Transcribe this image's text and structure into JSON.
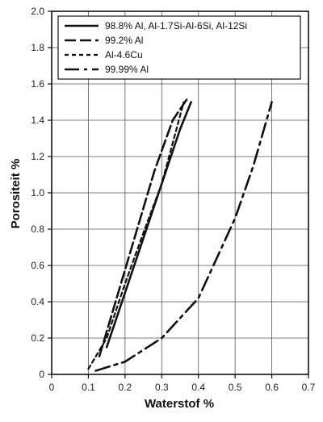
{
  "chart_data": {
    "type": "line",
    "title": "",
    "xlabel": "Waterstof %",
    "ylabel": "Porositeit %",
    "xlim": [
      0,
      0.7
    ],
    "ylim": [
      0,
      2.0
    ],
    "xticks": [
      0,
      0.1,
      0.2,
      0.3,
      0.4,
      0.5,
      0.6,
      0.7
    ],
    "xtick_labels": [
      "0",
      "0.1",
      "0.2",
      "0.3",
      "0.4",
      "0.5",
      "0.6",
      "0.7"
    ],
    "yticks": [
      0,
      0.2,
      0.4,
      0.6,
      0.8,
      1.0,
      1.2,
      1.4,
      1.6,
      1.8,
      2.0
    ],
    "ytick_labels": [
      "0",
      "0.2",
      "0.4",
      "0.6",
      "0.8",
      "1.0",
      "1.2",
      "1.4",
      "1.6",
      "1.8",
      "2.0"
    ],
    "grid": true,
    "legend_position": "top-left",
    "series": [
      {
        "name": "98.8% Al, Al-1.7Si-Al-6Si, Al-12Si",
        "style": "solid",
        "x": [
          0.15,
          0.2,
          0.25,
          0.3,
          0.35,
          0.38
        ],
        "y": [
          0.15,
          0.45,
          0.75,
          1.05,
          1.35,
          1.5
        ]
      },
      {
        "name": "99.2% Al",
        "style": "long-dash",
        "x": [
          0.13,
          0.18,
          0.23,
          0.28,
          0.33,
          0.37
        ],
        "y": [
          0.1,
          0.44,
          0.78,
          1.12,
          1.4,
          1.52
        ]
      },
      {
        "name": "Al-4.6Cu",
        "style": "short-dash",
        "x": [
          0.1,
          0.15,
          0.2,
          0.25,
          0.3,
          0.36
        ],
        "y": [
          0.03,
          0.2,
          0.5,
          0.78,
          1.05,
          1.5
        ]
      },
      {
        "name": "99.99% Al",
        "style": "dash-dot",
        "x": [
          0.12,
          0.2,
          0.3,
          0.4,
          0.5,
          0.55,
          0.6
        ],
        "y": [
          0.02,
          0.07,
          0.2,
          0.42,
          0.86,
          1.15,
          1.5
        ]
      }
    ]
  }
}
